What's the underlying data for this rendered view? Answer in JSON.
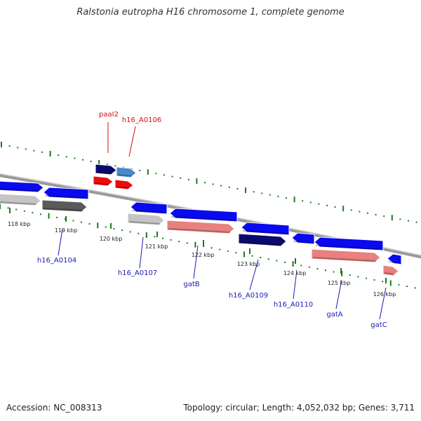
{
  "header": {
    "title": "Ralstonia eutropha H16 chromosome 1, complete genome"
  },
  "footer": {
    "accession": "Accession: NC_008313",
    "topology": "Topology: circular; Length: 4,052,032 bp; Genes: 3,711"
  },
  "colors": {
    "backbone": "#888888",
    "tick": "#1a7a1a",
    "blue": "#0a0aee",
    "navy": "#0b0b6e",
    "steelblue": "#4a88c8",
    "red": "#ee0a0a",
    "salmon": "#e88080",
    "lightgray": "#c4c4c4",
    "darkgray": "#5a5a5a",
    "label_blue": "#1a1ab4",
    "label_red": "#cc1111"
  },
  "ruler": {
    "labels": [
      "118 kbp",
      "119 kbp",
      "120 kbp",
      "121 kbp",
      "122 kbp",
      "123 kbp",
      "124 kbp",
      "125 kbp",
      "126 kbp"
    ]
  },
  "genes": [
    {
      "kind": "blue",
      "strand": "forward"
    },
    {
      "kind": "blue",
      "strand": "reverse"
    },
    {
      "kind": "navy",
      "strand": "forward"
    },
    {
      "kind": "steelblue",
      "strand": "forward"
    },
    {
      "kind": "red",
      "strand": "forward"
    },
    {
      "kind": "red",
      "strand": "forward"
    },
    {
      "kind": "lightgray",
      "strand": "forward"
    },
    {
      "kind": "darkgray",
      "strand": "forward"
    },
    {
      "kind": "blue",
      "strand": "reverse"
    },
    {
      "kind": "lightgray",
      "strand": "forward"
    },
    {
      "kind": "blue",
      "strand": "reverse"
    },
    {
      "kind": "salmon",
      "strand": "forward"
    },
    {
      "kind": "blue",
      "strand": "reverse"
    },
    {
      "kind": "navy",
      "strand": "forward"
    },
    {
      "kind": "blue",
      "strand": "reverse"
    },
    {
      "kind": "blue",
      "strand": "reverse"
    },
    {
      "kind": "salmon",
      "strand": "forward"
    },
    {
      "kind": "blue",
      "strand": "reverse"
    },
    {
      "kind": "salmon",
      "strand": "forward"
    }
  ],
  "gene_labels": [
    "paaI2",
    "h16_A0106",
    "h16_A0104",
    "h16_A0107",
    "gatB",
    "h16_A0109",
    "h16_A0110",
    "gatA",
    "gatC"
  ]
}
